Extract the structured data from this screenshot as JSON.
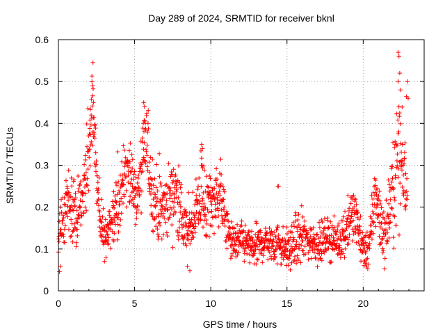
{
  "chart_data": {
    "type": "scatter",
    "title": "Day 289 of 2024, SRMTID for receiver bknl",
    "xlabel": "GPS time / hours",
    "ylabel": "SRMTID / TECUs",
    "xlim": [
      0,
      24
    ],
    "ylim": [
      0,
      0.6
    ],
    "xticks": [
      0,
      5,
      10,
      15,
      20
    ],
    "xtick_labels": [
      "0",
      "5",
      "10",
      "15",
      "20"
    ],
    "yticks": [
      0,
      0.1,
      0.2,
      0.3,
      0.4,
      0.5,
      0.6
    ],
    "ytick_labels": [
      "0",
      "0.1",
      "0.2",
      "0.3",
      "0.4",
      "0.5",
      "0.6"
    ],
    "grid": true,
    "marker": "plus",
    "series": [
      {
        "name": "SRMTID",
        "color": "#ff0000",
        "profile": [
          [
            0.0,
            0.12,
            0.04
          ],
          [
            0.3,
            0.16,
            0.05
          ],
          [
            0.6,
            0.22,
            0.05
          ],
          [
            0.9,
            0.19,
            0.05
          ],
          [
            1.2,
            0.17,
            0.05
          ],
          [
            1.5,
            0.2,
            0.05
          ],
          [
            1.8,
            0.26,
            0.06
          ],
          [
            2.1,
            0.36,
            0.08
          ],
          [
            2.3,
            0.44,
            0.06
          ],
          [
            2.5,
            0.27,
            0.06
          ],
          [
            2.8,
            0.15,
            0.04
          ],
          [
            3.1,
            0.13,
            0.03
          ],
          [
            3.4,
            0.15,
            0.04
          ],
          [
            3.7,
            0.18,
            0.05
          ],
          [
            4.0,
            0.22,
            0.06
          ],
          [
            4.3,
            0.28,
            0.06
          ],
          [
            4.6,
            0.31,
            0.05
          ],
          [
            4.9,
            0.24,
            0.05
          ],
          [
            5.2,
            0.22,
            0.05
          ],
          [
            5.5,
            0.3,
            0.07
          ],
          [
            5.8,
            0.36,
            0.06
          ],
          [
            6.1,
            0.25,
            0.06
          ],
          [
            6.4,
            0.21,
            0.06
          ],
          [
            6.7,
            0.19,
            0.06
          ],
          [
            7.0,
            0.2,
            0.06
          ],
          [
            7.3,
            0.22,
            0.06
          ],
          [
            7.6,
            0.24,
            0.06
          ],
          [
            7.9,
            0.22,
            0.06
          ],
          [
            8.2,
            0.15,
            0.05
          ],
          [
            8.5,
            0.13,
            0.05
          ],
          [
            8.8,
            0.17,
            0.05
          ],
          [
            9.1,
            0.2,
            0.06
          ],
          [
            9.4,
            0.24,
            0.07
          ],
          [
            9.7,
            0.2,
            0.06
          ],
          [
            10.0,
            0.21,
            0.05
          ],
          [
            10.3,
            0.22,
            0.05
          ],
          [
            10.6,
            0.24,
            0.05
          ],
          [
            10.9,
            0.18,
            0.04
          ],
          [
            11.2,
            0.13,
            0.03
          ],
          [
            11.6,
            0.11,
            0.03
          ],
          [
            12.0,
            0.12,
            0.03
          ],
          [
            12.4,
            0.11,
            0.03
          ],
          [
            12.8,
            0.1,
            0.03
          ],
          [
            13.2,
            0.11,
            0.03
          ],
          [
            13.6,
            0.12,
            0.03
          ],
          [
            14.0,
            0.11,
            0.03
          ],
          [
            14.4,
            0.12,
            0.04
          ],
          [
            14.8,
            0.1,
            0.03
          ],
          [
            15.2,
            0.1,
            0.03
          ],
          [
            15.6,
            0.12,
            0.04
          ],
          [
            16.0,
            0.13,
            0.04
          ],
          [
            16.4,
            0.12,
            0.03
          ],
          [
            16.8,
            0.12,
            0.03
          ],
          [
            17.2,
            0.11,
            0.03
          ],
          [
            17.6,
            0.13,
            0.03
          ],
          [
            18.0,
            0.12,
            0.03
          ],
          [
            18.4,
            0.12,
            0.03
          ],
          [
            18.8,
            0.14,
            0.04
          ],
          [
            19.2,
            0.18,
            0.04
          ],
          [
            19.6,
            0.17,
            0.04
          ],
          [
            19.9,
            0.11,
            0.03
          ],
          [
            20.2,
            0.09,
            0.03
          ],
          [
            20.5,
            0.13,
            0.04
          ],
          [
            20.8,
            0.24,
            0.06
          ],
          [
            21.1,
            0.17,
            0.05
          ],
          [
            21.4,
            0.13,
            0.04
          ],
          [
            21.7,
            0.19,
            0.06
          ],
          [
            22.0,
            0.25,
            0.08
          ],
          [
            22.3,
            0.33,
            0.1
          ],
          [
            22.6,
            0.31,
            0.1
          ],
          [
            22.9,
            0.3,
            0.1
          ]
        ],
        "peaks": [
          [
            2.2,
            0.5
          ],
          [
            2.25,
            0.49
          ],
          [
            2.3,
            0.45
          ],
          [
            2.15,
            0.42
          ],
          [
            5.6,
            0.45
          ],
          [
            5.65,
            0.44
          ],
          [
            5.7,
            0.4
          ],
          [
            9.4,
            0.35
          ],
          [
            9.45,
            0.34
          ],
          [
            14.4,
            0.25
          ],
          [
            14.45,
            0.25
          ],
          [
            22.3,
            0.57
          ],
          [
            22.35,
            0.56
          ],
          [
            22.4,
            0.52
          ],
          [
            22.3,
            0.5
          ],
          [
            22.45,
            0.48
          ],
          [
            22.9,
            0.5
          ],
          [
            22.95,
            0.46
          ]
        ]
      }
    ]
  }
}
